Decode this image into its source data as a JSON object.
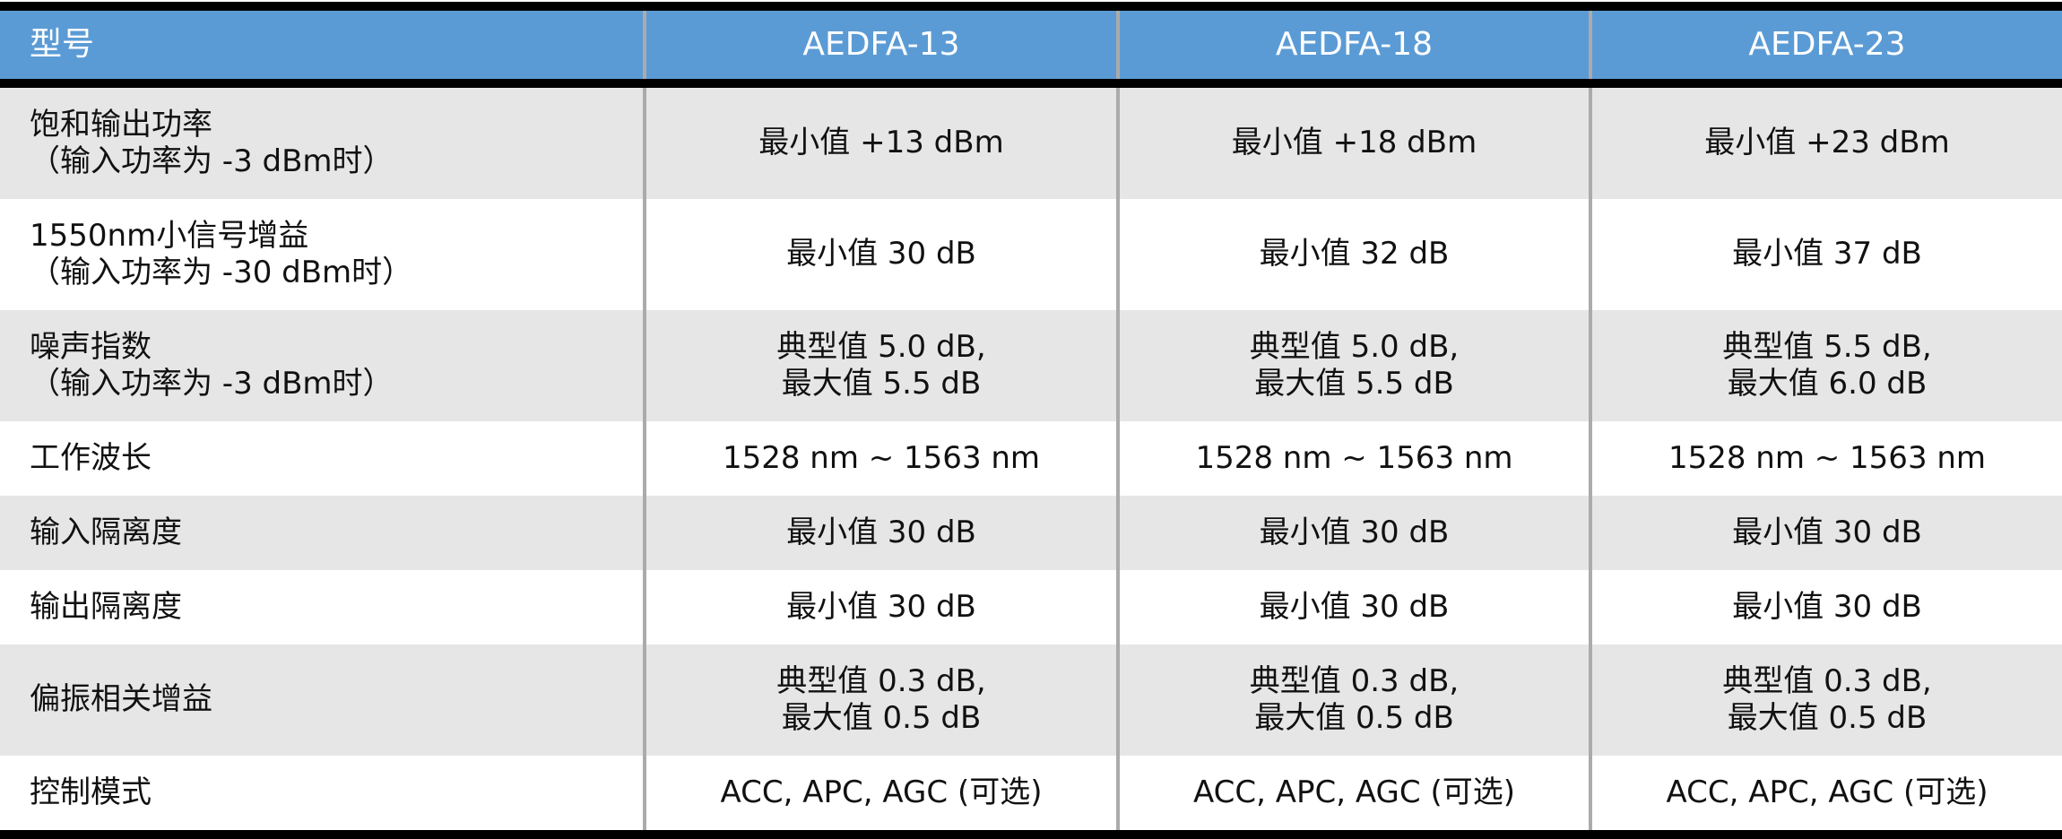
{
  "header": {
    "label": "型号",
    "models": [
      "AEDFA-13",
      "AEDFA-18",
      "AEDFA-23"
    ]
  },
  "colors": {
    "header_bg": "#5b9bd5",
    "row_alt": "#e6e6e6",
    "border": "#000000"
  },
  "rows": [
    {
      "label": [
        "饱和输出功率",
        "（输入功率为 -3 dBm时）"
      ],
      "values": [
        [
          "最小值 +13 dBm"
        ],
        [
          "最小值 +18 dBm"
        ],
        [
          "最小值 +23 dBm"
        ]
      ]
    },
    {
      "label": [
        "1550nm小信号增益",
        "（输入功率为 -30 dBm时）"
      ],
      "values": [
        [
          "最小值 30 dB"
        ],
        [
          "最小值 32 dB"
        ],
        [
          "最小值 37 dB"
        ]
      ]
    },
    {
      "label": [
        "噪声指数",
        "（输入功率为 -3 dBm时）"
      ],
      "values": [
        [
          "典型值 5.0 dB,",
          "最大值 5.5 dB"
        ],
        [
          "典型值 5.0 dB,",
          "最大值 5.5 dB"
        ],
        [
          "典型值 5.5 dB,",
          "最大值 6.0 dB"
        ]
      ]
    },
    {
      "label": [
        "工作波长"
      ],
      "values": [
        [
          "1528 nm ~ 1563 nm"
        ],
        [
          "1528 nm ~ 1563 nm"
        ],
        [
          "1528 nm ~ 1563 nm"
        ]
      ]
    },
    {
      "label": [
        "输入隔离度"
      ],
      "values": [
        [
          "最小值 30 dB"
        ],
        [
          "最小值 30 dB"
        ],
        [
          "最小值 30 dB"
        ]
      ]
    },
    {
      "label": [
        "输出隔离度"
      ],
      "values": [
        [
          "最小值 30 dB"
        ],
        [
          "最小值 30 dB"
        ],
        [
          "最小值 30 dB"
        ]
      ]
    },
    {
      "label": [
        "偏振相关增益"
      ],
      "values": [
        [
          "典型值 0.3 dB,",
          "最大值 0.5 dB"
        ],
        [
          "典型值 0.3 dB,",
          "最大值 0.5 dB"
        ],
        [
          "典型值 0.3 dB,",
          "最大值 0.5 dB"
        ]
      ]
    },
    {
      "label": [
        "控制模式"
      ],
      "values": [
        [
          "ACC, APC, AGC (可选)"
        ],
        [
          "ACC, APC, AGC (可选)"
        ],
        [
          "ACC, APC, AGC (可选)"
        ]
      ]
    }
  ]
}
